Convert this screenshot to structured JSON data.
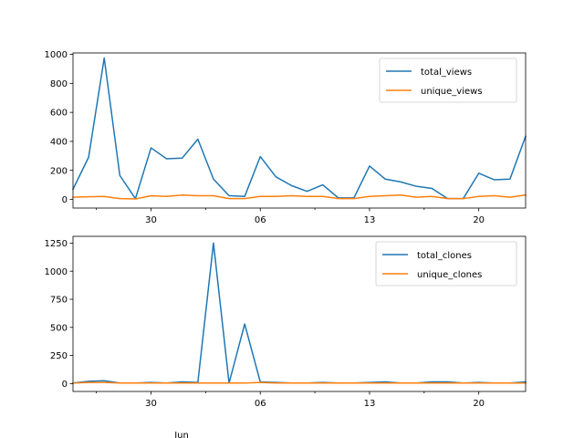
{
  "chart_data": [
    {
      "type": "line",
      "x_tick_labels": [
        "30",
        "06",
        "13",
        "20"
      ],
      "x_tick_positions": [
        9,
        16,
        23,
        30
      ],
      "x_range": [
        4,
        33
      ],
      "ylim": [
        -60,
        1010
      ],
      "y_ticks": [
        0,
        200,
        400,
        600,
        800,
        1000
      ],
      "legend": "top-right",
      "series": [
        {
          "name": "total_views",
          "color": "#1f77b4",
          "x": [
            4,
            5,
            6,
            7,
            8,
            9,
            10,
            11,
            12,
            13,
            14,
            15,
            16,
            17,
            18,
            19,
            20,
            21,
            22,
            23,
            24,
            25,
            26,
            27,
            28,
            29,
            30,
            31,
            32,
            33
          ],
          "values": [
            70,
            290,
            975,
            165,
            5,
            355,
            280,
            285,
            415,
            140,
            25,
            20,
            295,
            155,
            95,
            55,
            100,
            10,
            10,
            230,
            140,
            120,
            90,
            75,
            5,
            5,
            180,
            135,
            140,
            435
          ]
        },
        {
          "name": "unique_views",
          "color": "#ff7f0e",
          "x": [
            4,
            5,
            6,
            7,
            8,
            9,
            10,
            11,
            12,
            13,
            14,
            15,
            16,
            17,
            18,
            19,
            20,
            21,
            22,
            23,
            24,
            25,
            26,
            27,
            28,
            29,
            30,
            31,
            32,
            33
          ],
          "values": [
            15,
            18,
            20,
            5,
            3,
            25,
            20,
            30,
            25,
            25,
            5,
            5,
            20,
            20,
            25,
            20,
            20,
            5,
            5,
            20,
            25,
            30,
            15,
            20,
            5,
            5,
            20,
            25,
            15,
            30
          ]
        }
      ]
    },
    {
      "type": "line",
      "x_tick_labels": [
        "30",
        "06",
        "13",
        "20"
      ],
      "x_tick_positions": [
        9,
        16,
        23,
        30
      ],
      "x_label": "Jun",
      "x_range": [
        4,
        33
      ],
      "ylim": [
        -70,
        1310
      ],
      "y_ticks": [
        0,
        250,
        500,
        750,
        1000,
        1250
      ],
      "legend": "top-right",
      "series": [
        {
          "name": "total_clones",
          "color": "#1f77b4",
          "x": [
            4,
            5,
            6,
            7,
            8,
            9,
            10,
            11,
            12,
            13,
            14,
            15,
            16,
            17,
            18,
            19,
            20,
            21,
            22,
            23,
            24,
            25,
            26,
            27,
            28,
            29,
            30,
            31,
            32,
            33
          ],
          "values": [
            5,
            20,
            25,
            5,
            5,
            10,
            5,
            15,
            10,
            1250,
            5,
            530,
            15,
            10,
            5,
            5,
            10,
            5,
            5,
            10,
            15,
            5,
            5,
            15,
            15,
            5,
            10,
            5,
            5,
            15
          ]
        },
        {
          "name": "unique_clones",
          "color": "#ff7f0e",
          "x": [
            4,
            5,
            6,
            7,
            8,
            9,
            10,
            11,
            12,
            13,
            14,
            15,
            16,
            17,
            18,
            19,
            20,
            21,
            22,
            23,
            24,
            25,
            26,
            27,
            28,
            29,
            30,
            31,
            32,
            33
          ],
          "values": [
            5,
            10,
            10,
            5,
            5,
            5,
            5,
            5,
            5,
            5,
            5,
            5,
            10,
            5,
            5,
            5,
            5,
            5,
            5,
            5,
            5,
            5,
            5,
            5,
            5,
            5,
            5,
            5,
            5,
            5
          ]
        }
      ]
    }
  ]
}
